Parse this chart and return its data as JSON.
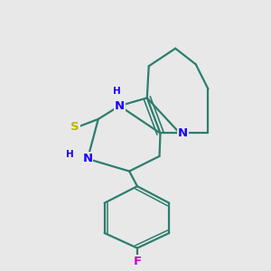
{
  "background_color": "#e8e8e8",
  "bond_color": "#2d7d6e",
  "bond_width": 1.6,
  "atom_colors": {
    "N": "#1a00ff",
    "S": "#b8b800",
    "F": "#cc00cc",
    "H": "#1a00ff"
  },
  "figsize": [
    3.0,
    3.0
  ],
  "dpi": 100
}
